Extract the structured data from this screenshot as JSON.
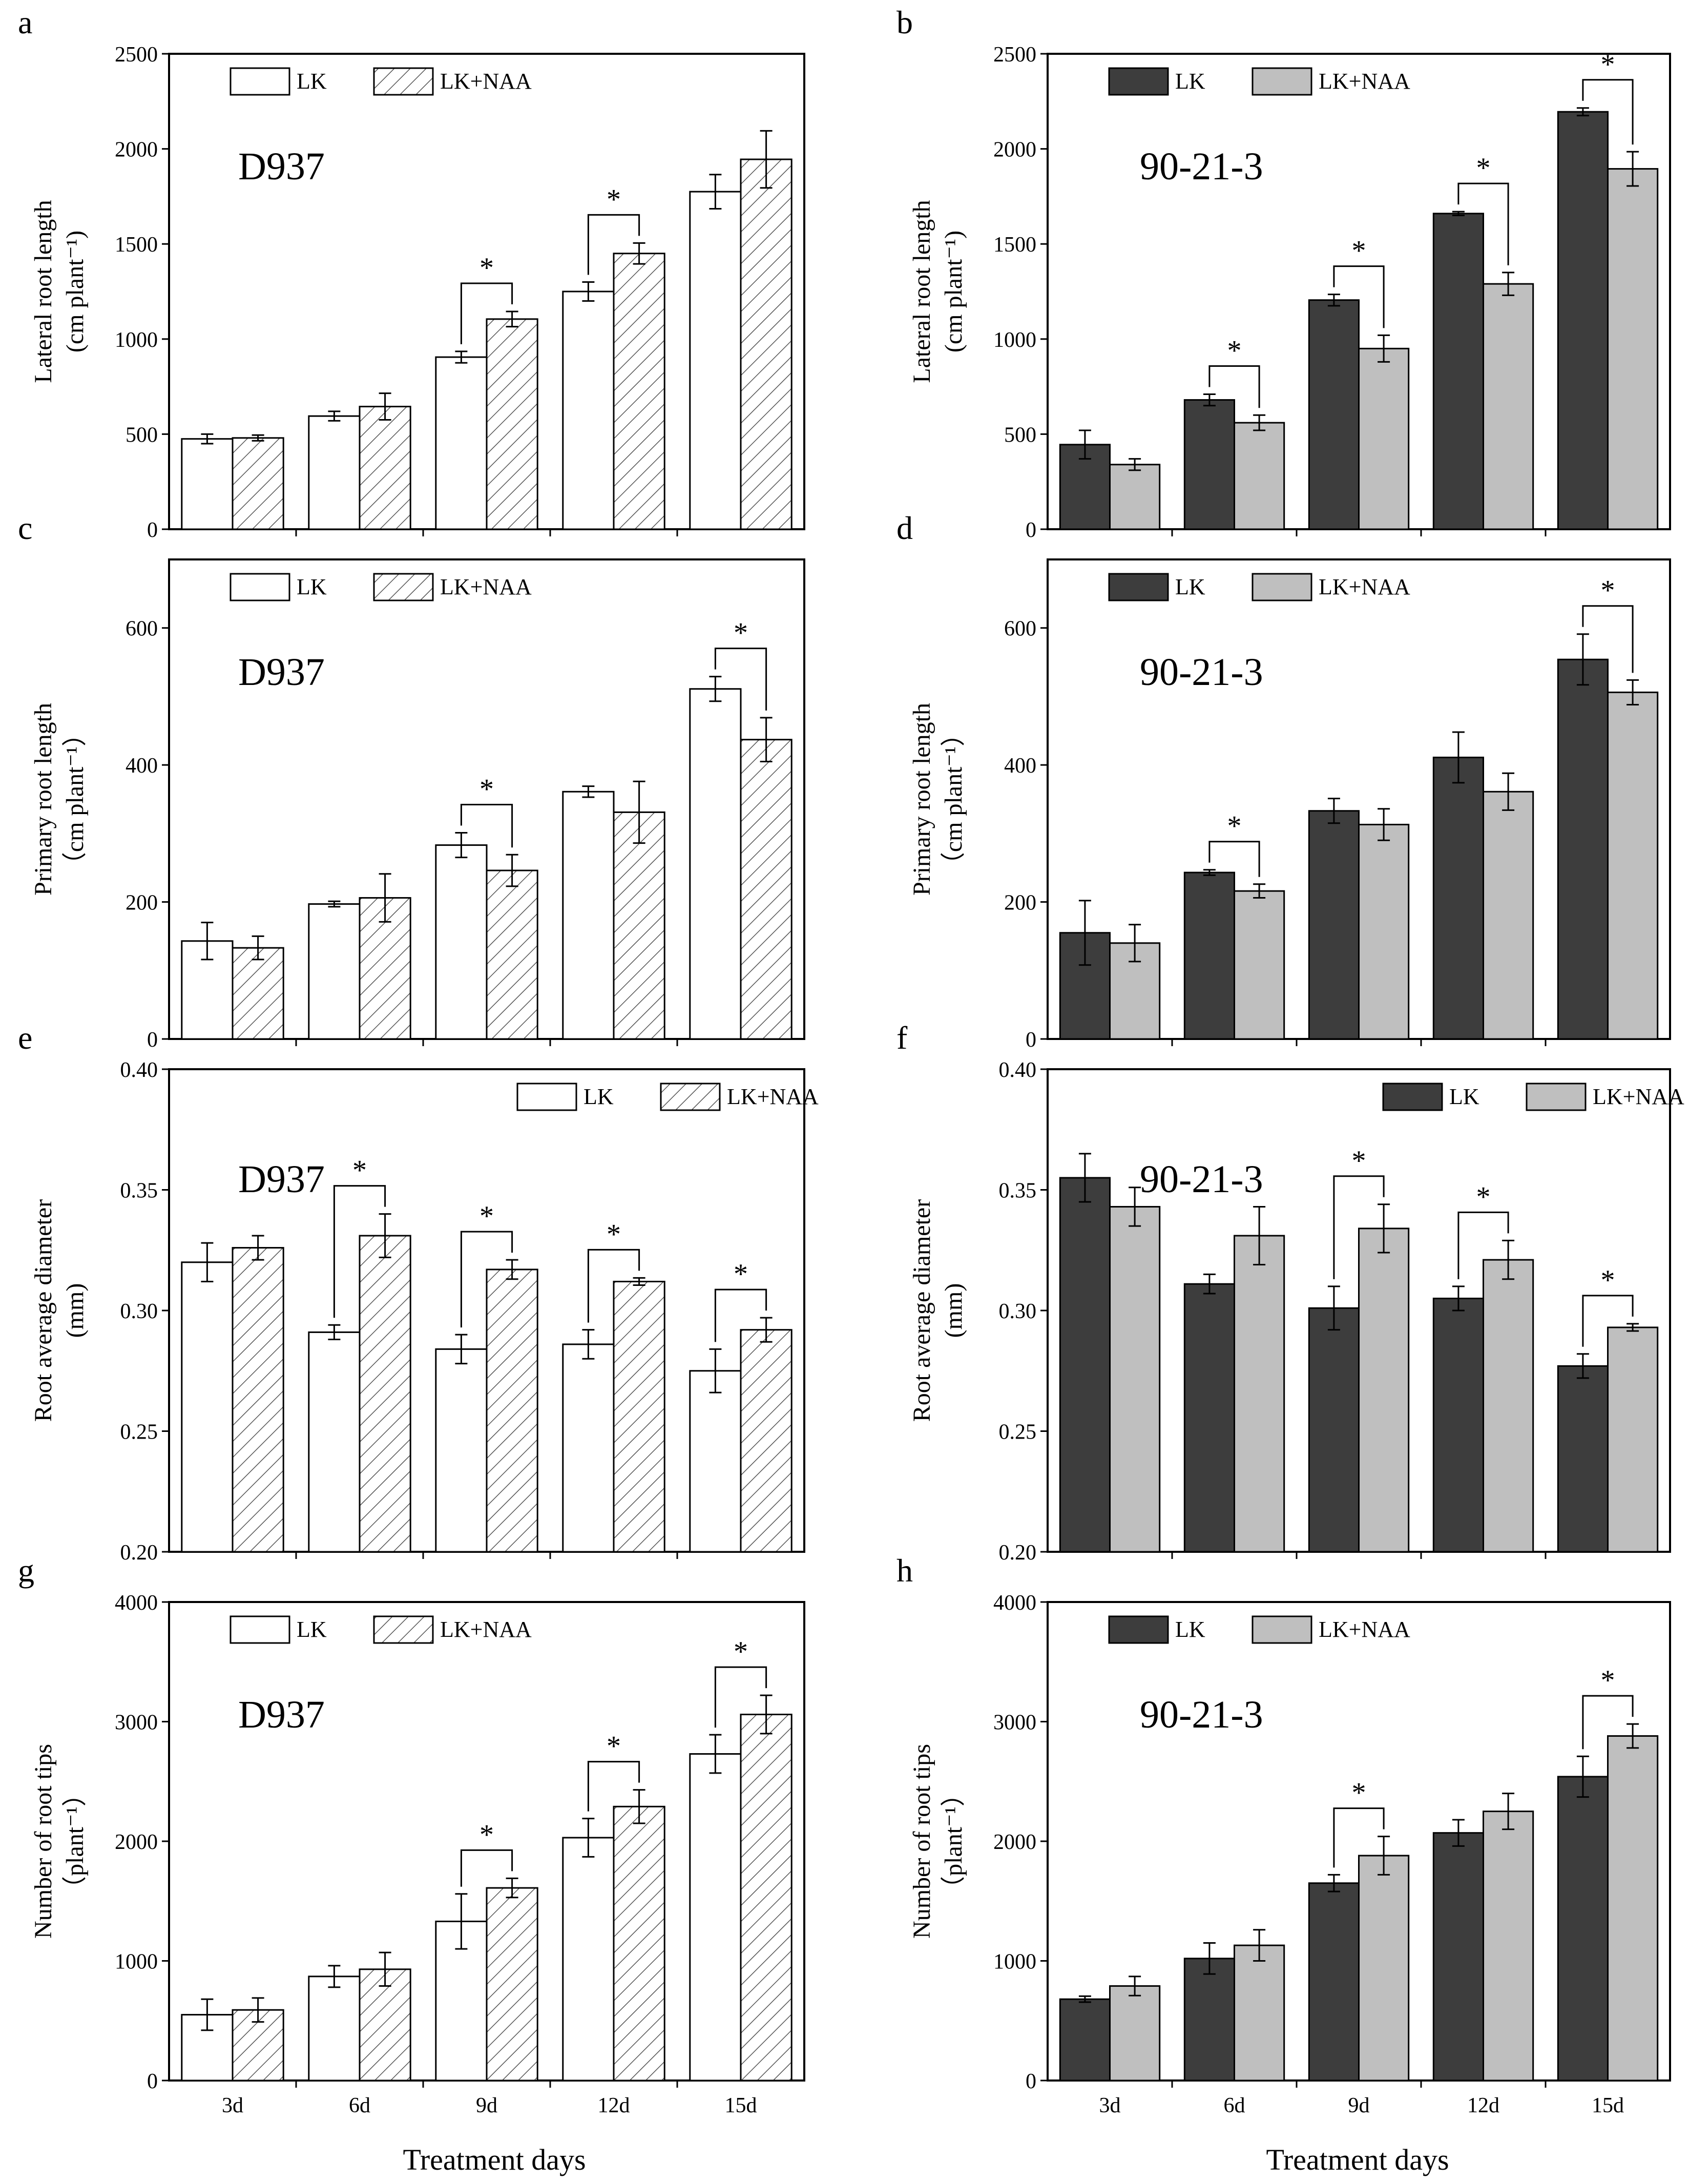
{
  "figure": {
    "x_label": "Treatment days",
    "categories": [
      "3d",
      "6d",
      "9d",
      "12d",
      "15d"
    ]
  },
  "styles": {
    "LK_D937": {
      "fill": "#ffffff",
      "pattern": "none"
    },
    "LKNAA_D937": {
      "fill": "#ffffff",
      "pattern": "hatch"
    },
    "LK_9021": {
      "fill": "#3d3d3d"
    },
    "LKNAA_9021": {
      "fill": "#bfbfbf"
    }
  },
  "chart_data": [
    {
      "panel": "a",
      "type": "bar",
      "cultivar": "D937",
      "variety_style": "hatched",
      "ylabel_line1": "Lateral root length",
      "ylabel_line2": "(cm plant⁻¹)",
      "ylim": [
        0,
        2500
      ],
      "yticks": [
        "0",
        "500",
        "1000",
        "1500",
        "2000",
        "2500"
      ],
      "categories": [
        "3d",
        "6d",
        "9d",
        "12d",
        "15d"
      ],
      "show_xticks": false,
      "legend": {
        "labels": [
          "LK",
          "LK+NAA"
        ],
        "position": "top-left"
      },
      "series": [
        {
          "name": "LK",
          "values": [
            475,
            595,
            905,
            1250,
            1775
          ],
          "errors": [
            25,
            25,
            30,
            50,
            90
          ]
        },
        {
          "name": "LK+NAA",
          "values": [
            480,
            645,
            1105,
            1450,
            1945
          ],
          "errors": [
            15,
            70,
            40,
            55,
            150
          ]
        }
      ],
      "significant": [
        false,
        false,
        true,
        true,
        false
      ],
      "sig_label": "*"
    },
    {
      "panel": "b",
      "type": "bar",
      "cultivar": "90-21-3",
      "variety_style": "solid",
      "ylabel_line1": "Lateral root length",
      "ylabel_line2": "(cm plant⁻¹)",
      "ylim": [
        0,
        2500
      ],
      "yticks": [
        "0",
        "500",
        "1000",
        "1500",
        "2000",
        "2500"
      ],
      "categories": [
        "3d",
        "6d",
        "9d",
        "12d",
        "15d"
      ],
      "show_xticks": false,
      "legend": {
        "labels": [
          "LK",
          "LK+NAA"
        ],
        "position": "top-left"
      },
      "series": [
        {
          "name": "LK",
          "values": [
            445,
            680,
            1205,
            1660,
            2195
          ],
          "errors": [
            75,
            30,
            30,
            10,
            20
          ]
        },
        {
          "name": "LK+NAA",
          "values": [
            340,
            560,
            950,
            1290,
            1895
          ],
          "errors": [
            30,
            40,
            70,
            60,
            90
          ]
        }
      ],
      "significant": [
        false,
        true,
        true,
        true,
        true
      ],
      "sig_label": "*"
    },
    {
      "panel": "c",
      "type": "bar",
      "cultivar": "D937",
      "variety_style": "hatched",
      "ylabel_line1": "Primary root length",
      "ylabel_line2": "（cm plant⁻¹）",
      "ylim": [
        0,
        700
      ],
      "yticks": [
        "0",
        "200",
        "400",
        "600"
      ],
      "categories": [
        "3d",
        "6d",
        "9d",
        "12d",
        "15d"
      ],
      "show_xticks": false,
      "legend": {
        "labels": [
          "LK",
          "LK+NAA"
        ],
        "position": "top-left"
      },
      "series": [
        {
          "name": "LK",
          "values": [
            143,
            197,
            283,
            361,
            511
          ],
          "errors": [
            27,
            4,
            18,
            8,
            18
          ]
        },
        {
          "name": "LK+NAA",
          "values": [
            133,
            206,
            246,
            331,
            437
          ],
          "errors": [
            17,
            35,
            23,
            45,
            32
          ]
        }
      ],
      "significant": [
        false,
        false,
        true,
        false,
        true
      ],
      "sig_label": "*"
    },
    {
      "panel": "d",
      "type": "bar",
      "cultivar": "90-21-3",
      "variety_style": "solid",
      "ylabel_line1": "Primary root length",
      "ylabel_line2": "（cm plant⁻¹）",
      "ylim": [
        0,
        700
      ],
      "yticks": [
        "0",
        "200",
        "400",
        "600"
      ],
      "categories": [
        "3d",
        "6d",
        "9d",
        "12d",
        "15d"
      ],
      "show_xticks": false,
      "legend": {
        "labels": [
          "LK",
          "LK+NAA"
        ],
        "position": "top-left"
      },
      "series": [
        {
          "name": "LK",
          "values": [
            155,
            243,
            333,
            411,
            554
          ],
          "errors": [
            47,
            4,
            18,
            37,
            37
          ]
        },
        {
          "name": "LK+NAA",
          "values": [
            140,
            216,
            313,
            361,
            506
          ],
          "errors": [
            27,
            10,
            23,
            27,
            18
          ]
        }
      ],
      "significant": [
        false,
        true,
        false,
        false,
        true
      ],
      "sig_label": "*"
    },
    {
      "panel": "e",
      "type": "bar",
      "cultivar": "D937",
      "variety_style": "hatched",
      "ylabel_line1": "Root average diameter",
      "ylabel_line2": "(mm)",
      "ylim": [
        0.2,
        0.4
      ],
      "yticks": [
        "0.20",
        "0.25",
        "0.30",
        "0.35",
        "0.40"
      ],
      "categories": [
        "3d",
        "6d",
        "9d",
        "12d",
        "15d"
      ],
      "show_xticks": false,
      "legend": {
        "labels": [
          "LK",
          "LK+NAA"
        ],
        "position": "top-right"
      },
      "series": [
        {
          "name": "LK",
          "values": [
            0.32,
            0.291,
            0.284,
            0.286,
            0.275
          ],
          "errors": [
            0.008,
            0.003,
            0.006,
            0.006,
            0.009
          ]
        },
        {
          "name": "LK+NAA",
          "values": [
            0.326,
            0.331,
            0.317,
            0.312,
            0.292
          ],
          "errors": [
            0.005,
            0.009,
            0.004,
            0.0015,
            0.005
          ]
        }
      ],
      "significant": [
        false,
        true,
        true,
        true,
        true
      ],
      "sig_label": "*"
    },
    {
      "panel": "f",
      "type": "bar",
      "cultivar": "90-21-3",
      "variety_style": "solid",
      "ylabel_line1": "Root average diameter",
      "ylabel_line2": "(mm)",
      "ylim": [
        0.2,
        0.4
      ],
      "yticks": [
        "0.20",
        "0.25",
        "0.30",
        "0.35",
        "0.40"
      ],
      "categories": [
        "3d",
        "6d",
        "9d",
        "12d",
        "15d"
      ],
      "show_xticks": false,
      "legend": {
        "labels": [
          "LK",
          "LK+NAA"
        ],
        "position": "top-right"
      },
      "series": [
        {
          "name": "LK",
          "values": [
            0.355,
            0.311,
            0.301,
            0.305,
            0.277
          ],
          "errors": [
            0.01,
            0.004,
            0.009,
            0.005,
            0.005
          ]
        },
        {
          "name": "LK+NAA",
          "values": [
            0.343,
            0.331,
            0.334,
            0.321,
            0.293
          ],
          "errors": [
            0.008,
            0.012,
            0.01,
            0.008,
            0.0015
          ]
        }
      ],
      "significant": [
        false,
        false,
        true,
        true,
        true
      ],
      "sig_label": "*"
    },
    {
      "panel": "g",
      "type": "bar",
      "cultivar": "D937",
      "variety_style": "hatched",
      "ylabel_line1": "Number of root tips",
      "ylabel_line2": "（plant⁻¹）",
      "ylim": [
        0,
        4000
      ],
      "yticks": [
        "0",
        "1000",
        "2000",
        "3000",
        "4000"
      ],
      "categories": [
        "3d",
        "6d",
        "9d",
        "12d",
        "15d"
      ],
      "show_xticks": true,
      "legend": {
        "labels": [
          "LK",
          "LK+NAA"
        ],
        "position": "top-left"
      },
      "series": [
        {
          "name": "LK",
          "values": [
            550,
            870,
            1330,
            2030,
            2730
          ],
          "errors": [
            130,
            90,
            230,
            160,
            160
          ]
        },
        {
          "name": "LK+NAA",
          "values": [
            590,
            930,
            1610,
            2290,
            3060
          ],
          "errors": [
            100,
            140,
            80,
            140,
            160
          ]
        }
      ],
      "significant": [
        false,
        false,
        true,
        true,
        true
      ],
      "sig_label": "*"
    },
    {
      "panel": "h",
      "type": "bar",
      "cultivar": "90-21-3",
      "variety_style": "solid",
      "ylabel_line1": "Number of root tips",
      "ylabel_line2": "（plant⁻¹）",
      "ylim": [
        0,
        4000
      ],
      "yticks": [
        "0",
        "1000",
        "2000",
        "3000",
        "4000"
      ],
      "categories": [
        "3d",
        "6d",
        "9d",
        "12d",
        "15d"
      ],
      "show_xticks": true,
      "legend": {
        "labels": [
          "LK",
          "LK+NAA"
        ],
        "position": "top-left"
      },
      "series": [
        {
          "name": "LK",
          "values": [
            680,
            1020,
            1650,
            2070,
            2540
          ],
          "errors": [
            25,
            130,
            70,
            110,
            170
          ]
        },
        {
          "name": "LK+NAA",
          "values": [
            790,
            1130,
            1880,
            2250,
            2880
          ],
          "errors": [
            80,
            130,
            160,
            150,
            100
          ]
        }
      ],
      "significant": [
        false,
        false,
        true,
        false,
        true
      ],
      "sig_label": "*"
    }
  ]
}
